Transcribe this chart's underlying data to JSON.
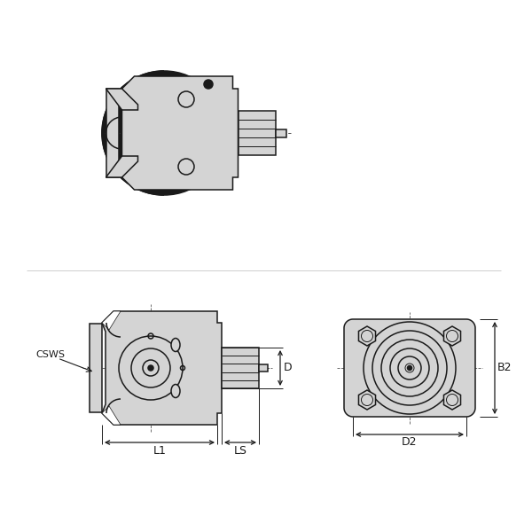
{
  "bg_color": "#ffffff",
  "line_color": "#1a1a1a",
  "fill_color": "#d4d4d4",
  "fig_width": 6.0,
  "fig_height": 6.0,
  "dpi": 100,
  "labels": {
    "D": "D",
    "B2": "B2",
    "L1": "L1",
    "LS": "LS",
    "D2": "D2",
    "CSWS": "CSWS"
  }
}
